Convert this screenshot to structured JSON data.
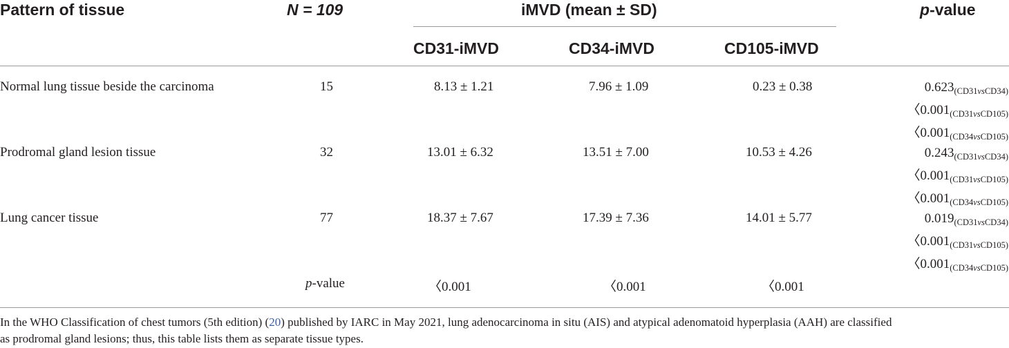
{
  "headers": {
    "pattern": "Pattern of tissue",
    "n": "N = 109",
    "group": "iMVD (mean ± SD)",
    "pvalue": "p-value",
    "sub": [
      "CD31-iMVD",
      "CD34-iMVD",
      "CD105-iMVD"
    ]
  },
  "rows": [
    {
      "tissue": "Normal lung tissue beside the carcinoma",
      "n": "15",
      "cd31": "8.13 ± 1.21",
      "cd34": "7.96 ± 1.09",
      "cd105": "0.23 ± 0.38",
      "pvalues": [
        {
          "val": "0.623",
          "a": "(CD31",
          "vs": "vs",
          "b": "CD34)"
        },
        {
          "val": "〈0.001",
          "a": "(CD31",
          "vs": "vs",
          "b": "CD105)"
        },
        {
          "val": "〈0.001",
          "a": "(CD34",
          "vs": "vs",
          "b": "CD105)"
        }
      ]
    },
    {
      "tissue": "Prodromal gland lesion tissue",
      "n": "32",
      "cd31": "13.01 ± 6.32",
      "cd34": "13.51 ± 7.00",
      "cd105": "10.53 ± 4.26",
      "pvalues": [
        {
          "val": "0.243",
          "a": "(CD31",
          "vs": "vs",
          "b": "CD34)"
        },
        {
          "val": "〈0.001",
          "a": "(CD31",
          "vs": "vs",
          "b": "CD105)"
        },
        {
          "val": "〈0.001",
          "a": "(CD34",
          "vs": "vs",
          "b": "CD105)"
        }
      ]
    },
    {
      "tissue": "Lung cancer tissue",
      "n": "77",
      "cd31": "18.37 ± 7.67",
      "cd34": "17.39 ± 7.36",
      "cd105": "14.01 ± 5.77",
      "pvalues": [
        {
          "val": "0.019",
          "a": "(CD31",
          "vs": "vs",
          "b": "CD34)"
        },
        {
          "val": "〈0.001",
          "a": "(CD31",
          "vs": "vs",
          "b": "CD105)"
        },
        {
          "val": "〈0.001",
          "a": "(CD34",
          "vs": "vs",
          "b": "CD105)"
        }
      ]
    }
  ],
  "pvalue_row": {
    "label": "p-value",
    "cd31": "〈0.001",
    "cd34": "〈0.001",
    "cd105": "〈0.001"
  },
  "footnote": {
    "before": "In the WHO Classification of chest tumors (5th edition) (",
    "ref": "20",
    "after": ") published by IARC in May 2021, lung adenocarcinoma in situ (AIS) and atypical adenomatoid hyperplasia (AAH) are classified",
    "line2": "as prodromal gland lesions; thus, this table lists them as separate tissue types."
  }
}
